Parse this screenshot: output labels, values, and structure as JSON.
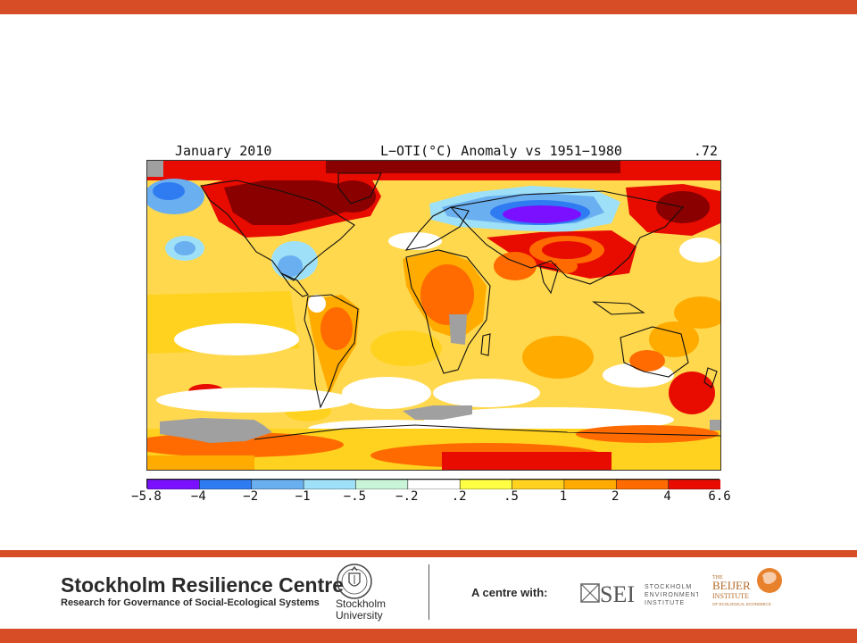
{
  "colors": {
    "accent_bar": "#d64d26",
    "scale": [
      "#7a10ff",
      "#2f7cf2",
      "#6aaff0",
      "#9ee0f7",
      "#c8f5d7",
      "#ffffff",
      "#ffff44",
      "#ffd21f",
      "#ffab00",
      "#ff6b00",
      "#e80b00",
      "#8a0000"
    ],
    "no_data": "#a0a0a0",
    "coast": "#111111"
  },
  "map": {
    "month": "January 2010",
    "title": "L−OTI(°C) Anomaly vs 1951−1980",
    "global_mean": ".72",
    "legend_ticks": [
      "−5.8",
      "−4",
      "−2",
      "−1",
      "−.5",
      "−.2",
      ".2",
      ".5",
      "1",
      "2",
      "4",
      "6.6"
    ]
  },
  "footer": {
    "org_title": "Stockholm Resilience Centre",
    "org_subtitle": "Research for Governance of Social-Ecological Systems",
    "university_line1": "Stockholm",
    "university_line2": "University",
    "partners_label": "A centre with:",
    "sei_letters": "SEI",
    "sei_text": [
      "STOCKHOLM",
      "ENVIRONMENT",
      "INSTITUTE"
    ],
    "beijer_the": "THE",
    "beijer_name": "BEIJER",
    "beijer_inst": "INSTITUTE",
    "beijer_sub": "OF ECOLOGICAL ECONOMICS"
  }
}
